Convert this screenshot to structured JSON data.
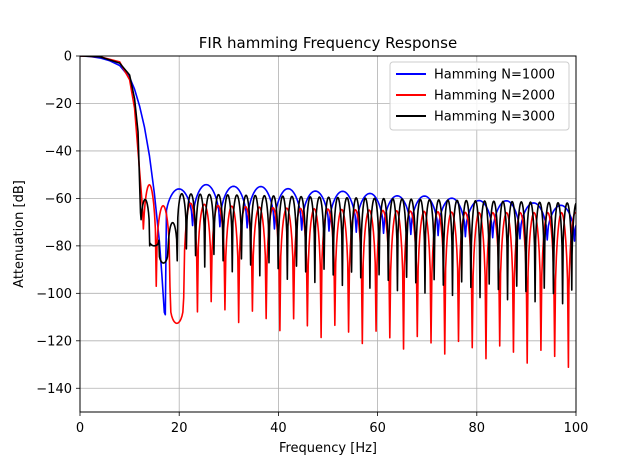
{
  "chart_data": {
    "type": "line",
    "title": "FIR hamming Frequency Response",
    "xlabel": "Frequency [Hz]",
    "ylabel": "Attenuation [dB]",
    "xlim": [
      0,
      100
    ],
    "ylim": [
      -150,
      0
    ],
    "xticks": [
      0,
      20,
      40,
      60,
      80,
      100
    ],
    "yticks": [
      0,
      -20,
      -40,
      -60,
      -80,
      -100,
      -120,
      -140
    ],
    "grid": true,
    "legend_position": "top-right",
    "series": [
      {
        "name": "Hamming N=1000",
        "color": "#0000ff",
        "x": [
          0,
          2,
          4,
          6,
          8,
          10,
          11,
          12,
          13,
          14,
          15,
          16,
          16.5,
          17.0,
          17.2,
          20.5,
          26,
          31.5,
          37,
          42.5,
          48,
          53.5,
          59,
          64.5,
          70,
          75.5,
          81,
          86.5,
          92,
          97.5
        ],
        "values": [
          0,
          -0.2,
          -0.8,
          -2,
          -4,
          -9,
          -14,
          -21,
          -30,
          -42,
          -58,
          -78,
          -92,
          -108,
          -109,
          -56,
          -54,
          -55,
          -55,
          -56,
          -57,
          -57,
          -58,
          -59,
          -59,
          -60,
          -61,
          -61,
          -62,
          -63
        ],
        "main_lobe_end_hz": 17.2,
        "sidelobe_spacing_hz": 5.5,
        "sidelobe_peaks_db": [
          -56,
          -63
        ],
        "null_depth_db": [
          -71,
          -78
        ]
      },
      {
        "name": "Hamming N=2000",
        "color": "#ff0000",
        "x": [
          0,
          4,
          8,
          10,
          11,
          12,
          12.6,
          14.3,
          16.7,
          19.4,
          22.2,
          28,
          40,
          60,
          80,
          99
        ],
        "values": [
          0,
          -0.3,
          -2.5,
          -10,
          -22,
          -48,
          -64,
          -52,
          -62,
          -115,
          -62,
          -63,
          -64,
          -65,
          -66,
          -66
        ],
        "sidelobe_spacing_hz": 2.77,
        "sidelobe_peaks_db": [
          -62,
          -66
        ],
        "null_depth_db": [
          -93,
          -128
        ]
      },
      {
        "name": "Hamming N=3000",
        "color": "#000000",
        "x": [
          0,
          4,
          8,
          10,
          11,
          11.7,
          12.2,
          12.8,
          14.6,
          16.2,
          20,
          40,
          60,
          80,
          100
        ],
        "values": [
          0,
          -0.3,
          -3,
          -8,
          -18,
          -32,
          -66,
          -57,
          -76,
          -93,
          -58,
          -59,
          -60,
          -61,
          -62
        ],
        "sidelobe_spacing_hz": 1.85,
        "sidelobe_peaks_db": [
          -57,
          -62
        ],
        "null_depth_db": [
          -76,
          -101
        ]
      }
    ]
  }
}
